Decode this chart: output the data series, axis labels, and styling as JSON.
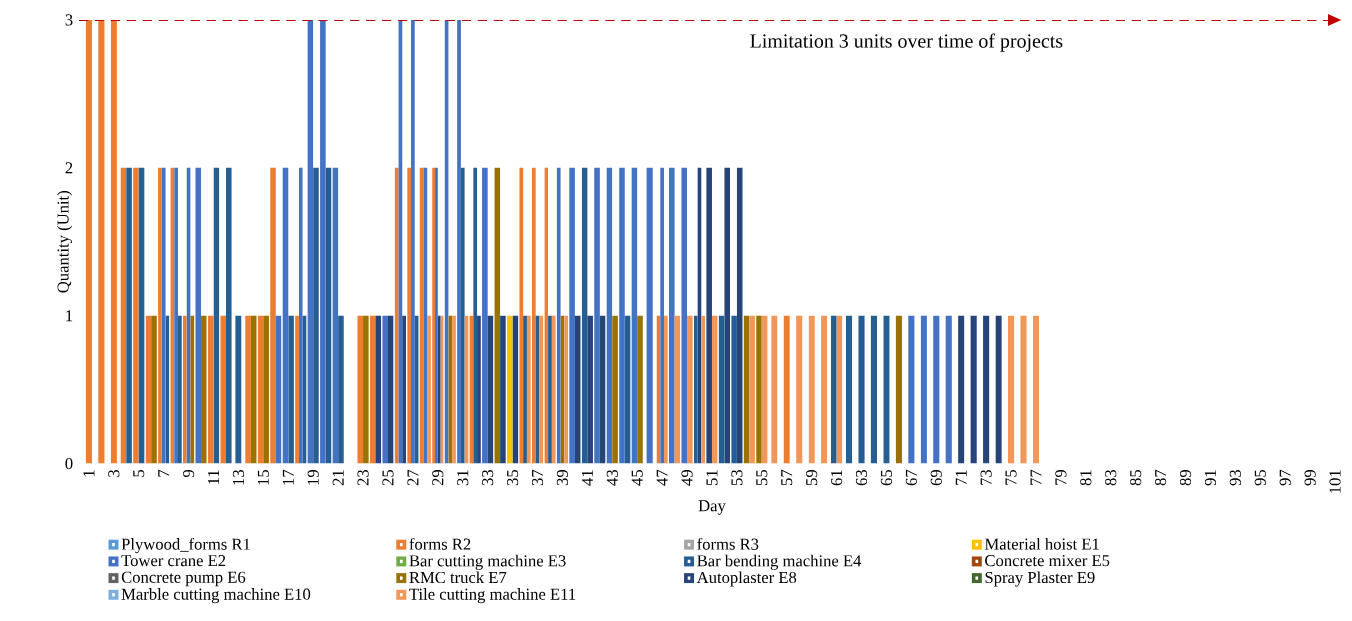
{
  "chart_data": {
    "type": "bar",
    "xlabel": "Day",
    "ylabel": "Quantity (Unit)",
    "categories": [
      "1",
      null,
      "3",
      null,
      "5",
      null,
      "7",
      null,
      "9",
      null,
      "11",
      null,
      "13",
      null,
      "15",
      null,
      "17",
      null,
      "19",
      null,
      "21",
      null,
      "23",
      null,
      "25",
      null,
      "27",
      null,
      "29",
      null,
      "31",
      null,
      "33",
      null,
      "35",
      null,
      "37",
      null,
      "39",
      null,
      "41",
      null,
      "43",
      null,
      "45",
      null,
      "47",
      null,
      "49",
      null,
      "51",
      null,
      "53",
      null,
      "55",
      null,
      "57",
      null,
      "59",
      null,
      "61",
      null,
      "63",
      null,
      "65",
      null,
      "67",
      null,
      "69",
      null,
      "71",
      null,
      "73",
      null,
      "75",
      null,
      "77",
      null,
      "79",
      null,
      "81",
      null,
      "83",
      null,
      "85",
      null,
      "87",
      null,
      "89",
      null,
      "91",
      null,
      "93",
      null,
      "95",
      null,
      "97",
      null,
      "99",
      null,
      "101"
    ],
    "ylim": [
      0,
      3
    ],
    "yticks": [
      0,
      1,
      2,
      3
    ],
    "legend": "bottom",
    "ref_lines": [
      {
        "axis": "y",
        "value": 3,
        "label": "Limitation 3 units over time of projects",
        "color": "#c00000",
        "line_style": "dashed"
      }
    ],
    "series": [
      {
        "name": "Plywood_forms R1",
        "color": "#5b9bd5",
        "values": [
          null,
          null,
          null,
          null,
          null,
          null,
          null,
          null,
          null,
          null,
          null,
          null,
          null,
          null,
          null,
          null,
          null,
          null,
          null,
          null,
          null,
          null,
          null,
          null,
          null,
          null,
          null,
          null,
          null,
          null,
          null,
          null,
          null,
          null,
          null,
          null,
          null,
          null,
          null,
          null,
          null,
          null,
          null,
          null,
          null,
          null,
          null,
          null,
          null,
          null,
          null,
          null,
          null,
          null,
          null,
          null,
          null,
          null,
          null,
          null,
          null,
          null,
          null,
          null,
          null,
          null,
          null,
          null,
          null,
          null,
          null,
          null,
          null,
          null,
          null,
          null,
          null,
          null,
          null,
          null,
          null,
          null,
          null,
          null,
          null,
          null,
          null,
          null,
          null,
          null,
          null,
          null,
          null,
          null,
          null,
          null,
          null,
          null,
          null,
          null,
          null
        ]
      },
      {
        "name": "forms R2",
        "color": "#ed7d31",
        "values": [
          3,
          3,
          3,
          2,
          2,
          1,
          2,
          2,
          1,
          null,
          1,
          1,
          null,
          1,
          1,
          2,
          null,
          1,
          null,
          null,
          null,
          null,
          1,
          1,
          null,
          2,
          2,
          2,
          2,
          null,
          null,
          1,
          null,
          null,
          null,
          2,
          2,
          2,
          null,
          null,
          null,
          null,
          null,
          null,
          null,
          null,
          1,
          null,
          null,
          null,
          null,
          null,
          null,
          null,
          null,
          null,
          1,
          null,
          null,
          null,
          null,
          null,
          null,
          null,
          null,
          null,
          null,
          null,
          null,
          null,
          null,
          null,
          null,
          null,
          null,
          null,
          null,
          null,
          null,
          null,
          null,
          null,
          null,
          null,
          null,
          null,
          null,
          null,
          null,
          null,
          null,
          null,
          null,
          null,
          null,
          null,
          null,
          null,
          null,
          null,
          null
        ]
      },
      {
        "name": "forms R3",
        "color": "#a5a5a5",
        "values": [
          null,
          null,
          null,
          null,
          null,
          null,
          null,
          null,
          null,
          null,
          null,
          null,
          null,
          null,
          null,
          null,
          null,
          null,
          null,
          null,
          null,
          null,
          null,
          null,
          null,
          null,
          null,
          null,
          null,
          null,
          null,
          null,
          null,
          null,
          null,
          null,
          null,
          null,
          null,
          null,
          null,
          null,
          null,
          null,
          null,
          null,
          null,
          null,
          null,
          null,
          null,
          null,
          null,
          null,
          null,
          null,
          null,
          null,
          null,
          null,
          null,
          null,
          null,
          null,
          null,
          null,
          null,
          null,
          null,
          null,
          null,
          null,
          null,
          null,
          null,
          null,
          null,
          null,
          null,
          null,
          null,
          null,
          null,
          null,
          null,
          null,
          null,
          null,
          null,
          null,
          null,
          null,
          null,
          null,
          null,
          null,
          null,
          null,
          null,
          null,
          null
        ]
      },
      {
        "name": "Material hoist E1",
        "color": "#ffc000",
        "values": [
          null,
          null,
          null,
          null,
          null,
          null,
          null,
          null,
          null,
          null,
          null,
          null,
          null,
          null,
          null,
          null,
          null,
          null,
          null,
          null,
          null,
          null,
          null,
          null,
          null,
          null,
          null,
          null,
          null,
          null,
          null,
          null,
          null,
          null,
          1,
          null,
          null,
          null,
          null,
          null,
          null,
          null,
          null,
          null,
          null,
          null,
          null,
          null,
          null,
          null,
          null,
          null,
          null,
          null,
          null,
          null,
          null,
          null,
          null,
          null,
          null,
          null,
          null,
          null,
          null,
          null,
          null,
          null,
          null,
          null,
          null,
          null,
          null,
          null,
          null,
          null,
          null,
          null,
          null,
          null,
          null,
          null,
          null,
          null,
          null,
          null,
          null,
          null,
          null,
          null,
          null,
          null,
          null,
          null,
          null,
          null,
          null,
          null,
          null,
          null,
          null
        ]
      },
      {
        "name": "Tower crane E2",
        "color": "#4472c4",
        "values": [
          null,
          null,
          null,
          null,
          null,
          null,
          2,
          2,
          2,
          2,
          null,
          null,
          null,
          null,
          null,
          1,
          2,
          2,
          3,
          3,
          2,
          null,
          null,
          null,
          1,
          3,
          3,
          2,
          2,
          3,
          3,
          null,
          2,
          null,
          null,
          null,
          null,
          null,
          2,
          2,
          null,
          2,
          2,
          2,
          2,
          2,
          2,
          2,
          2,
          null,
          null,
          null,
          null,
          null,
          null,
          null,
          null,
          null,
          null,
          null,
          null,
          null,
          null,
          null,
          null,
          null,
          1,
          1,
          1,
          1,
          null,
          null,
          null,
          null,
          null,
          null,
          null,
          null,
          null,
          null,
          null,
          null,
          null,
          null,
          null,
          null,
          null,
          null,
          null,
          null,
          null,
          null,
          null,
          null,
          null,
          null,
          null,
          null,
          null,
          null,
          null
        ]
      },
      {
        "name": "Bar cutting machine E3",
        "color": "#70ad47",
        "values": [
          null,
          null,
          null,
          null,
          null,
          null,
          null,
          null,
          null,
          null,
          null,
          null,
          null,
          null,
          null,
          null,
          null,
          null,
          null,
          null,
          null,
          null,
          null,
          null,
          null,
          null,
          null,
          null,
          null,
          null,
          null,
          null,
          null,
          null,
          null,
          null,
          null,
          null,
          null,
          null,
          null,
          null,
          null,
          null,
          null,
          null,
          null,
          null,
          null,
          null,
          null,
          null,
          null,
          null,
          null,
          null,
          null,
          null,
          null,
          null,
          null,
          null,
          null,
          null,
          null,
          null,
          null,
          null,
          null,
          null,
          null,
          null,
          null,
          null,
          null,
          null,
          null,
          null,
          null,
          null,
          null,
          null,
          null,
          null,
          null,
          null,
          null,
          null,
          null,
          null,
          null,
          null,
          null,
          null,
          null,
          null,
          null,
          null,
          null,
          null,
          null
        ]
      },
      {
        "name": "Bar bending machine E4",
        "color": "#255e91",
        "values": [
          null,
          null,
          null,
          2,
          2,
          null,
          1,
          1,
          null,
          null,
          2,
          2,
          1,
          null,
          null,
          null,
          1,
          1,
          2,
          2,
          1,
          null,
          null,
          null,
          null,
          null,
          1,
          null,
          null,
          null,
          2,
          2,
          null,
          null,
          null,
          1,
          1,
          1,
          null,
          null,
          2,
          null,
          null,
          1,
          null,
          null,
          null,
          null,
          null,
          1,
          null,
          1,
          1,
          null,
          null,
          null,
          null,
          null,
          null,
          null,
          1,
          1,
          1,
          1,
          1,
          null,
          null,
          null,
          null,
          null,
          null,
          null,
          null,
          null,
          null,
          null,
          null,
          null,
          null,
          null,
          null,
          null,
          null,
          null,
          null,
          null,
          null,
          null,
          null,
          null,
          null,
          null,
          null,
          null,
          null,
          null,
          null,
          null,
          null,
          null,
          null
        ]
      },
      {
        "name": "Concrete mixer E5",
        "color": "#9e480e",
        "values": [
          null,
          null,
          null,
          null,
          null,
          null,
          null,
          null,
          null,
          null,
          null,
          null,
          null,
          null,
          null,
          null,
          null,
          null,
          null,
          null,
          null,
          null,
          null,
          null,
          null,
          null,
          null,
          null,
          null,
          null,
          null,
          null,
          null,
          null,
          null,
          null,
          null,
          null,
          null,
          null,
          null,
          null,
          null,
          null,
          null,
          null,
          null,
          null,
          null,
          null,
          null,
          null,
          null,
          null,
          null,
          null,
          null,
          null,
          null,
          null,
          null,
          null,
          null,
          null,
          null,
          null,
          null,
          null,
          null,
          null,
          null,
          null,
          null,
          null,
          null,
          null,
          null,
          null,
          null,
          null,
          null,
          null,
          null,
          null,
          null,
          null,
          null,
          null,
          null,
          null,
          null,
          null,
          null,
          null,
          null,
          null,
          null,
          null,
          null,
          null,
          null
        ]
      },
      {
        "name": "Concrete pump E6",
        "color": "#636363",
        "values": [
          null,
          null,
          null,
          null,
          null,
          null,
          null,
          null,
          null,
          null,
          null,
          null,
          null,
          null,
          null,
          null,
          null,
          null,
          null,
          null,
          null,
          null,
          null,
          null,
          null,
          null,
          null,
          null,
          null,
          null,
          null,
          null,
          null,
          null,
          null,
          null,
          null,
          null,
          null,
          null,
          null,
          null,
          null,
          null,
          null,
          null,
          null,
          null,
          null,
          null,
          null,
          null,
          null,
          null,
          null,
          null,
          null,
          null,
          null,
          null,
          null,
          null,
          null,
          null,
          null,
          null,
          null,
          null,
          null,
          null,
          null,
          null,
          null,
          null,
          null,
          null,
          null,
          null,
          null,
          null,
          null,
          null,
          null,
          null,
          null,
          null,
          null,
          null,
          null,
          null,
          null,
          null,
          null,
          null,
          null,
          null,
          null,
          null,
          null,
          null,
          null
        ]
      },
      {
        "name": "RMC truck E7",
        "color": "#997300",
        "values": [
          null,
          null,
          null,
          null,
          null,
          1,
          null,
          null,
          1,
          1,
          null,
          null,
          null,
          1,
          1,
          null,
          null,
          null,
          null,
          null,
          null,
          null,
          1,
          null,
          null,
          null,
          null,
          null,
          null,
          1,
          null,
          null,
          null,
          2,
          null,
          null,
          null,
          null,
          1,
          null,
          null,
          null,
          1,
          null,
          1,
          null,
          null,
          null,
          null,
          null,
          null,
          null,
          null,
          1,
          1,
          null,
          null,
          null,
          null,
          null,
          null,
          null,
          null,
          null,
          null,
          1,
          null,
          null,
          null,
          null,
          null,
          null,
          null,
          null,
          null,
          null,
          null,
          null,
          null,
          null,
          null,
          null,
          null,
          null,
          null,
          null,
          null,
          null,
          null,
          null,
          null,
          null,
          null,
          null,
          null,
          null,
          null,
          null,
          null,
          null,
          null
        ]
      },
      {
        "name": "Autoplaster E8",
        "color": "#264478",
        "values": [
          null,
          null,
          null,
          null,
          null,
          null,
          null,
          null,
          null,
          null,
          null,
          null,
          null,
          null,
          null,
          null,
          null,
          null,
          null,
          null,
          null,
          null,
          null,
          1,
          1,
          1,
          null,
          null,
          1,
          null,
          null,
          1,
          1,
          1,
          1,
          null,
          null,
          null,
          null,
          1,
          1,
          1,
          null,
          null,
          null,
          null,
          null,
          null,
          null,
          2,
          2,
          2,
          2,
          null,
          null,
          null,
          null,
          null,
          null,
          null,
          null,
          null,
          null,
          null,
          null,
          null,
          null,
          null,
          null,
          null,
          1,
          1,
          1,
          1,
          null,
          null,
          null,
          null,
          null,
          null,
          null,
          null,
          null,
          null,
          null,
          null,
          null,
          null,
          null,
          null,
          null,
          null,
          null,
          null,
          null,
          null,
          null,
          null,
          null,
          null,
          null
        ]
      },
      {
        "name": "Spray Plaster E9",
        "color": "#43682b",
        "values": [
          null,
          null,
          null,
          null,
          null,
          null,
          null,
          null,
          null,
          null,
          null,
          null,
          null,
          null,
          null,
          null,
          null,
          null,
          null,
          null,
          null,
          null,
          null,
          null,
          null,
          null,
          null,
          null,
          null,
          null,
          null,
          null,
          null,
          null,
          null,
          null,
          null,
          null,
          null,
          null,
          null,
          null,
          null,
          null,
          null,
          null,
          null,
          null,
          null,
          null,
          null,
          null,
          null,
          null,
          null,
          null,
          null,
          null,
          null,
          null,
          null,
          null,
          null,
          null,
          null,
          null,
          null,
          null,
          null,
          null,
          null,
          null,
          null,
          null,
          null,
          null,
          null,
          null,
          null,
          null,
          null,
          null,
          null,
          null,
          null,
          null,
          null,
          null,
          null,
          null,
          null,
          null,
          null,
          null,
          null,
          null,
          null,
          null,
          null,
          null,
          null
        ]
      },
      {
        "name": "Marble cutting machine E10",
        "color": "#7cafdd",
        "values": [
          null,
          null,
          null,
          null,
          null,
          null,
          null,
          null,
          null,
          null,
          null,
          null,
          null,
          null,
          null,
          null,
          null,
          null,
          null,
          null,
          null,
          null,
          null,
          null,
          null,
          null,
          null,
          null,
          null,
          null,
          null,
          null,
          null,
          null,
          null,
          null,
          null,
          null,
          null,
          null,
          null,
          null,
          null,
          null,
          null,
          null,
          null,
          null,
          null,
          null,
          null,
          null,
          null,
          null,
          null,
          null,
          null,
          null,
          null,
          null,
          null,
          null,
          null,
          null,
          null,
          null,
          null,
          null,
          null,
          null,
          null,
          null,
          null,
          null,
          null,
          null,
          null,
          null,
          null,
          null,
          null,
          null,
          null,
          null,
          null,
          null,
          null,
          null,
          null,
          null,
          null,
          null,
          null,
          null,
          null,
          null,
          null,
          null,
          null,
          null,
          null
        ]
      },
      {
        "name": "Tile cutting machine E11",
        "color": "#f1975a",
        "values": [
          null,
          null,
          null,
          null,
          null,
          null,
          null,
          null,
          null,
          null,
          null,
          null,
          null,
          null,
          null,
          null,
          null,
          null,
          null,
          null,
          null,
          null,
          null,
          null,
          null,
          null,
          null,
          1,
          1,
          1,
          1,
          null,
          null,
          null,
          null,
          1,
          1,
          1,
          1,
          null,
          null,
          null,
          null,
          null,
          null,
          null,
          1,
          1,
          1,
          1,
          1,
          null,
          null,
          1,
          1,
          1,
          null,
          1,
          1,
          1,
          1,
          null,
          null,
          null,
          null,
          null,
          null,
          null,
          null,
          null,
          null,
          null,
          null,
          null,
          1,
          1,
          1,
          null,
          null,
          null,
          null,
          null,
          null,
          null,
          null,
          null,
          null,
          null,
          null,
          null,
          null,
          null,
          null,
          null,
          null,
          null,
          null,
          null,
          null,
          null,
          null
        ]
      }
    ]
  }
}
